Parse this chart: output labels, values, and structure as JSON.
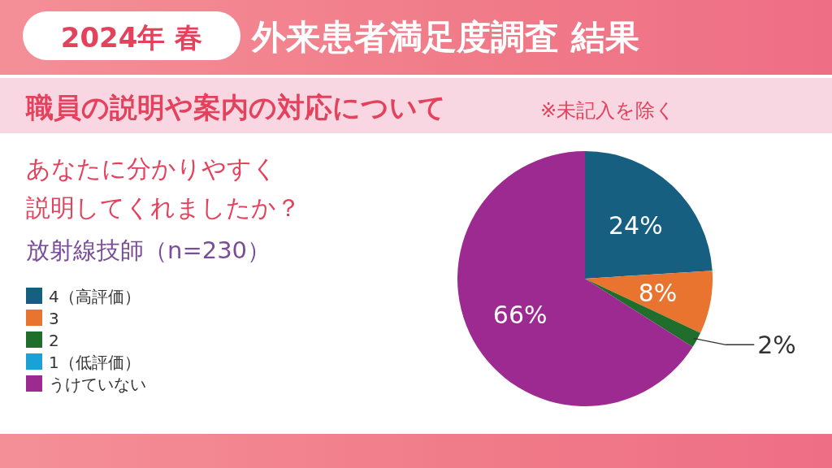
{
  "chart_data": {
    "type": "pie",
    "title": "外来患者満足度調査 結果",
    "subtitle": "職員の説明や案内の対応について",
    "annotations": [
      "2024年 春",
      "※未記入を除く",
      "あなたに分かりやすく",
      "説明してくれましたか？",
      "放射線技師（n=230）"
    ],
    "categories": [
      "4（高評価）",
      "3",
      "2",
      "1（低評価）",
      "うけていない"
    ],
    "values": [
      24,
      8,
      2,
      0,
      66
    ],
    "colors": [
      "#175f80",
      "#e8742f",
      "#1f6e2b",
      "#1ca0d8",
      "#9c2a91"
    ],
    "value_labels": [
      "24%",
      "8%",
      "2%",
      null,
      "66%"
    ],
    "legend": "left"
  }
}
